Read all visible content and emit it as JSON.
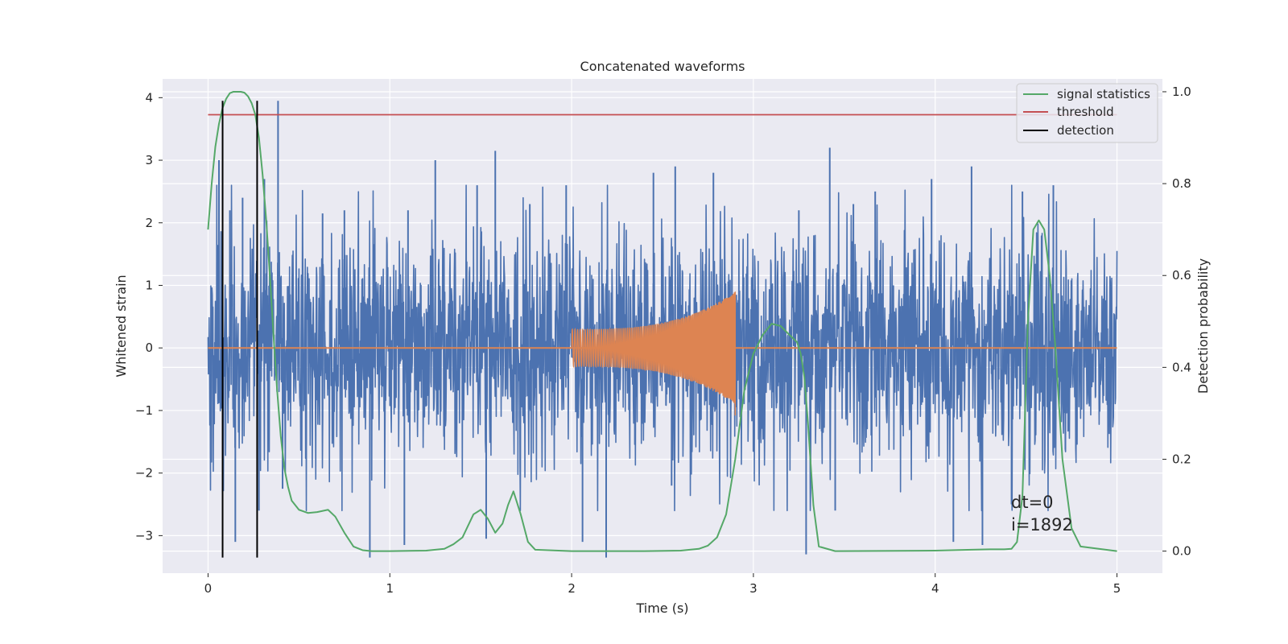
{
  "chart_data": {
    "type": "line",
    "title": "Concatenated waveforms",
    "xlabel": "Time (s)",
    "ylabel": "Whitened strain",
    "ylabel_right": "Detection probability",
    "xlim": [
      -0.25,
      5.25
    ],
    "ylim": [
      -3.6,
      4.3
    ],
    "ylim_right": [
      -0.048,
      1.028
    ],
    "x_ticks": [
      "0",
      "1",
      "2",
      "3",
      "4",
      "5"
    ],
    "y_ticks": [
      "−3",
      "−2",
      "−1",
      "0",
      "1",
      "2",
      "3",
      "4"
    ],
    "y_ticks_right": [
      "0.0",
      "0.2",
      "0.4",
      "0.6",
      "0.8",
      "1.0"
    ],
    "grid": true,
    "legend_position": "top-right",
    "legend": [
      "signal statistics",
      "threshold",
      "detection"
    ],
    "colors": {
      "noise": "#4c72b0",
      "injected_signal": "#dd8452",
      "signal_statistics": "#55a868",
      "threshold": "#c44e52",
      "detection": "#000000",
      "plot_background": "#eaeaf2",
      "grid": "#ffffff"
    },
    "series": [
      {
        "axis": "left",
        "kind": "noise",
        "x_range": [
          0,
          5
        ],
        "typical_amplitude": 1.5,
        "spikes": [
          {
            "x": 0.06,
            "y": 3.0
          },
          {
            "x": 0.12,
            "y": 2.2
          },
          {
            "x": 0.19,
            "y": 2.4
          },
          {
            "x": 0.31,
            "y": 2.7
          },
          {
            "x": 0.385,
            "y": 3.95
          },
          {
            "x": 0.63,
            "y": 2.15
          },
          {
            "x": 0.75,
            "y": 2.2
          },
          {
            "x": 1.1,
            "y": 2.2
          },
          {
            "x": 1.25,
            "y": 3.0
          },
          {
            "x": 1.48,
            "y": 2.6
          },
          {
            "x": 1.58,
            "y": 3.15
          },
          {
            "x": 1.77,
            "y": 2.3
          },
          {
            "x": 1.97,
            "y": 2.6
          },
          {
            "x": 2.45,
            "y": 2.8
          },
          {
            "x": 2.57,
            "y": 2.9
          },
          {
            "x": 2.78,
            "y": 2.8
          },
          {
            "x": 3.25,
            "y": 2.2
          },
          {
            "x": 3.42,
            "y": 3.2
          },
          {
            "x": 3.55,
            "y": 2.3
          },
          {
            "x": 3.67,
            "y": 2.5
          },
          {
            "x": 3.98,
            "y": 2.7
          },
          {
            "x": 4.2,
            "y": 2.9
          },
          {
            "x": 4.48,
            "y": 2.5
          },
          {
            "x": 4.65,
            "y": 2.6
          }
        ],
        "dips": [
          {
            "x": 0.15,
            "y": -3.1
          },
          {
            "x": 0.28,
            "y": -2.6
          },
          {
            "x": 0.41,
            "y": -2.25
          },
          {
            "x": 0.89,
            "y": -3.35
          },
          {
            "x": 1.08,
            "y": -3.15
          },
          {
            "x": 1.53,
            "y": -3.05
          },
          {
            "x": 2.06,
            "y": -3.1
          },
          {
            "x": 2.19,
            "y": -3.35
          },
          {
            "x": 2.55,
            "y": -2.2
          },
          {
            "x": 3.29,
            "y": -3.3
          },
          {
            "x": 3.45,
            "y": -2.6
          },
          {
            "x": 4.1,
            "y": -3.1
          },
          {
            "x": 4.26,
            "y": -3.15
          },
          {
            "x": 4.42,
            "y": -2.5
          }
        ]
      },
      {
        "axis": "left",
        "kind": "chirp",
        "x_range": [
          2.0,
          2.9
        ],
        "amplitude_start": 0.3,
        "amplitude_end": 0.9,
        "peak_x": 2.9,
        "peak_y": 0.9,
        "trough_y": -1.08
      },
      {
        "name": "signal statistics",
        "axis": "right",
        "x": [
          0.0,
          0.02,
          0.04,
          0.06,
          0.08,
          0.1,
          0.12,
          0.14,
          0.16,
          0.18,
          0.2,
          0.22,
          0.24,
          0.26,
          0.28,
          0.3,
          0.32,
          0.34,
          0.36,
          0.38,
          0.4,
          0.42,
          0.44,
          0.46,
          0.5,
          0.55,
          0.6,
          0.66,
          0.7,
          0.75,
          0.8,
          0.85,
          0.9,
          1.0,
          1.2,
          1.3,
          1.35,
          1.4,
          1.43,
          1.46,
          1.5,
          1.54,
          1.58,
          1.62,
          1.65,
          1.68,
          1.72,
          1.76,
          1.8,
          2.0,
          2.4,
          2.6,
          2.7,
          2.75,
          2.8,
          2.85,
          2.9,
          2.95,
          3.0,
          3.05,
          3.1,
          3.15,
          3.2,
          3.24,
          3.26,
          3.28,
          3.3,
          3.33,
          3.36,
          3.45,
          4.0,
          4.2,
          4.3,
          4.38,
          4.42,
          4.45,
          4.48,
          4.51,
          4.54,
          4.57,
          4.6,
          4.63,
          4.66,
          4.7,
          4.75,
          4.8,
          5.0
        ],
        "values": [
          0.7,
          0.8,
          0.88,
          0.93,
          0.965,
          0.985,
          0.997,
          1.0,
          1.0,
          1.0,
          0.998,
          0.99,
          0.975,
          0.95,
          0.9,
          0.82,
          0.72,
          0.6,
          0.47,
          0.35,
          0.25,
          0.18,
          0.14,
          0.11,
          0.09,
          0.083,
          0.085,
          0.09,
          0.075,
          0.04,
          0.01,
          0.002,
          0.0,
          0.0,
          0.001,
          0.005,
          0.015,
          0.03,
          0.055,
          0.08,
          0.09,
          0.07,
          0.04,
          0.06,
          0.1,
          0.13,
          0.08,
          0.02,
          0.003,
          0.0,
          0.0,
          0.001,
          0.005,
          0.012,
          0.03,
          0.08,
          0.2,
          0.35,
          0.43,
          0.47,
          0.495,
          0.49,
          0.47,
          0.455,
          0.43,
          0.38,
          0.28,
          0.1,
          0.01,
          0.0,
          0.001,
          0.003,
          0.004,
          0.004,
          0.005,
          0.02,
          0.12,
          0.5,
          0.7,
          0.72,
          0.7,
          0.6,
          0.45,
          0.2,
          0.05,
          0.01,
          0.0
        ]
      },
      {
        "name": "threshold",
        "axis": "right",
        "x": [
          0,
          5
        ],
        "values": [
          0.95,
          0.95
        ]
      },
      {
        "name": "detection",
        "axis": "left",
        "x_positions": [
          0.08,
          0.27
        ],
        "y_range": [
          -3.35,
          3.95
        ]
      }
    ],
    "annotations": [
      "dt=0",
      "i=1892"
    ]
  }
}
